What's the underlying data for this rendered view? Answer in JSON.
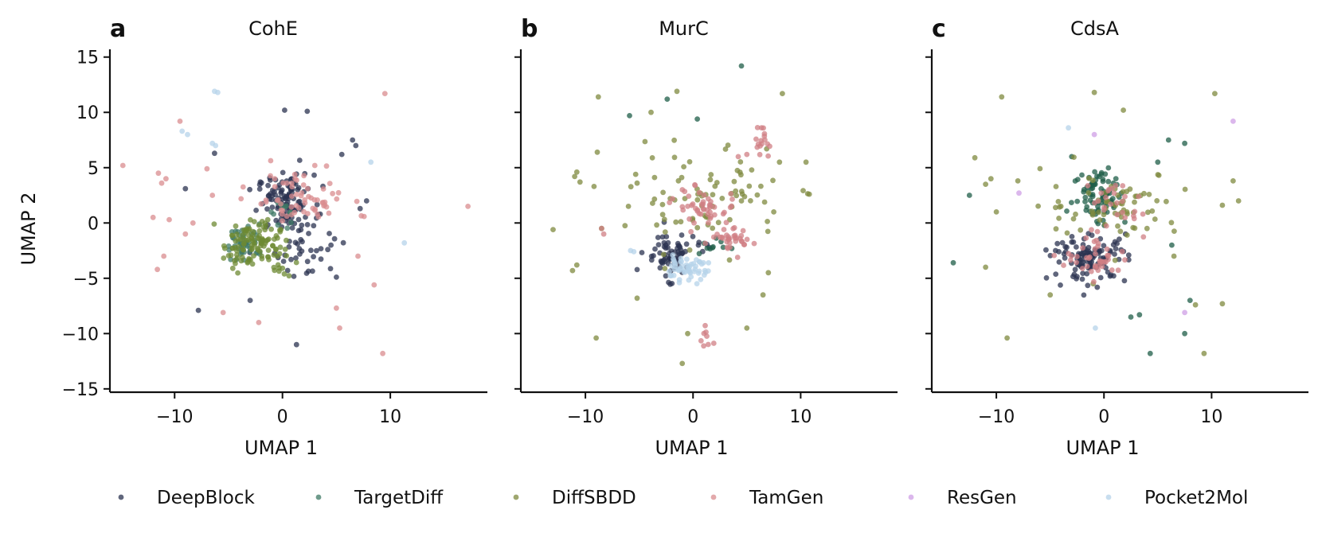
{
  "legend": [
    {
      "name": "DeepBlock",
      "color": "#2b3350"
    },
    {
      "name": "TargetDiff",
      "color": "#3f7a66"
    },
    {
      "name": "DiffSBDD",
      "color": "#7f8a3f"
    },
    {
      "name": "TamGen",
      "color": "#d98c8f"
    },
    {
      "name": "ResGen",
      "color": "#cf9fe6"
    },
    {
      "name": "Pocket2Mol",
      "color": "#b5d3ea"
    }
  ],
  "chart_data": [
    {
      "type": "scatter",
      "letter": "a",
      "title": "CohE",
      "xlabel": "UMAP 1",
      "ylabel": "UMAP 2",
      "xlim": [
        -16,
        19
      ],
      "ylim": [
        -15.3,
        15.7
      ],
      "xticks": [
        -10,
        0,
        10
      ],
      "xtick_labels": [
        "−10",
        "0",
        "10"
      ],
      "yticks": [
        -15,
        -10,
        -5,
        0,
        5,
        10,
        15
      ],
      "ytick_labels": [
        "−15",
        "−10",
        "−5",
        "0",
        "5",
        "10",
        "15"
      ],
      "show_ytick_labels": true,
      "series": [
        {
          "name": "DeepBlock",
          "color": "#2b3350",
          "clusters": [
            {
              "cx": 0.3,
              "cy": 1.8,
              "sx": 1.3,
              "sy": 1.3,
              "n": 110
            },
            {
              "cx": 2.5,
              "cy": -2.5,
              "sx": 1.7,
              "sy": 1.3,
              "n": 35
            }
          ],
          "outliers": [
            [
              0.2,
              10.2
            ],
            [
              2.3,
              10.1
            ],
            [
              6.5,
              7.5
            ],
            [
              6.8,
              7.0
            ],
            [
              5.5,
              6.2
            ],
            [
              -6.3,
              6.3
            ],
            [
              -9.0,
              3.1
            ],
            [
              -7.8,
              -7.9
            ],
            [
              1.3,
              -11.0
            ],
            [
              7.8,
              2.0
            ],
            [
              5.0,
              -4.9
            ],
            [
              -3.0,
              -7.0
            ],
            [
              3.5,
              0.8
            ],
            [
              7.2,
              1.3
            ],
            [
              4.5,
              -2.0
            ]
          ]
        },
        {
          "name": "TargetDiff",
          "color": "#3f7a66",
          "clusters": [
            {
              "cx": -3.4,
              "cy": -1.7,
              "sx": 0.9,
              "sy": 0.8,
              "n": 45
            },
            {
              "cx": 0.4,
              "cy": 1.3,
              "sx": 0.9,
              "sy": 0.9,
              "n": 12
            }
          ],
          "outliers": [
            [
              -4.8,
              -3.3
            ]
          ]
        },
        {
          "name": "DiffSBDD",
          "color": "#6e8a33",
          "clusters": [
            {
              "cx": -2.8,
              "cy": -1.9,
              "sx": 1.3,
              "sy": 1.1,
              "n": 110
            },
            {
              "cx": -0.5,
              "cy": -3.7,
              "sx": 0.8,
              "sy": 0.6,
              "n": 10
            }
          ],
          "outliers": []
        },
        {
          "name": "TamGen",
          "color": "#d98c8f",
          "clusters": [
            {
              "cx": 1.6,
              "cy": 2.1,
              "sx": 2.2,
              "sy": 1.3,
              "n": 65
            }
          ],
          "outliers": [
            [
              -14.8,
              5.2
            ],
            [
              17.2,
              1.5
            ],
            [
              9.5,
              11.7
            ],
            [
              -9.5,
              9.2
            ],
            [
              -11.5,
              4.5
            ],
            [
              -11.2,
              3.6
            ],
            [
              -10.5,
              0.3
            ],
            [
              -11.6,
              -4.2
            ],
            [
              -11.0,
              -3.0
            ],
            [
              8.5,
              -5.6
            ],
            [
              9.3,
              -11.8
            ],
            [
              5.3,
              -9.5
            ],
            [
              -5.5,
              -8.1
            ],
            [
              -2.2,
              -9.0
            ],
            [
              -7.0,
              4.9
            ],
            [
              -8.3,
              0.0
            ],
            [
              5.0,
              -7.7
            ],
            [
              -9.0,
              -1.0
            ],
            [
              -12.0,
              0.5
            ],
            [
              7.0,
              -3.0
            ],
            [
              -6.5,
              2.5
            ],
            [
              3.0,
              5.2
            ],
            [
              -10.8,
              4.0
            ]
          ]
        },
        {
          "name": "Pocket2Mol",
          "color": "#b5d3ea",
          "clusters": [],
          "outliers": [
            [
              -6.3,
              11.9
            ],
            [
              -6.0,
              11.8
            ],
            [
              -9.3,
              8.3
            ],
            [
              -8.8,
              8.0
            ],
            [
              -6.5,
              7.2
            ],
            [
              -6.2,
              7.0
            ],
            [
              8.2,
              5.5
            ],
            [
              11.3,
              -1.8
            ]
          ]
        }
      ]
    },
    {
      "type": "scatter",
      "letter": "b",
      "title": "MurC",
      "xlabel": "UMAP 1",
      "ylabel": "",
      "xlim": [
        -16,
        19
      ],
      "ylim": [
        -15.3,
        15.7
      ],
      "xticks": [
        -10,
        0,
        10
      ],
      "xtick_labels": [
        "−10",
        "0",
        "10"
      ],
      "yticks": [
        -15,
        -10,
        -5,
        0,
        5,
        10,
        15
      ],
      "ytick_labels": [
        "−15",
        "−10",
        "−5",
        "0",
        "5",
        "10",
        "15"
      ],
      "show_ytick_labels": false,
      "series": [
        {
          "name": "DeepBlock",
          "color": "#2b3350",
          "clusters": [
            {
              "cx": -2.2,
              "cy": -2.9,
              "sx": 1.2,
              "sy": 1.0,
              "n": 70
            }
          ],
          "outliers": [
            [
              0.5,
              -2.0
            ],
            [
              1.5,
              -2.2
            ]
          ]
        },
        {
          "name": "TargetDiff",
          "color": "#1f5e48",
          "clusters": [
            {
              "cx": 1.3,
              "cy": -2.1,
              "sx": 1.0,
              "sy": 0.5,
              "n": 8
            }
          ],
          "outliers": [
            [
              -5.9,
              9.7
            ],
            [
              0.4,
              9.4
            ],
            [
              -2.4,
              11.2
            ],
            [
              4.5,
              14.2
            ],
            [
              2.8,
              -2.2
            ],
            [
              3.6,
              -2.3
            ]
          ]
        },
        {
          "name": "DiffSBDD",
          "color": "#7f8a3f",
          "clusters": [
            {
              "cx": 1.5,
              "cy": 2.5,
              "sx": 3.5,
              "sy": 2.2,
              "n": 80
            }
          ],
          "outliers": [
            [
              -10.8,
              4.6
            ],
            [
              -11.0,
              4.2
            ],
            [
              -10.5,
              3.7
            ],
            [
              -8.8,
              11.4
            ],
            [
              -8.9,
              6.4
            ],
            [
              -9.2,
              3.3
            ],
            [
              -13.0,
              -0.6
            ],
            [
              -10.8,
              -3.8
            ],
            [
              -11.2,
              -4.3
            ],
            [
              -9.0,
              -10.4
            ],
            [
              8.3,
              11.7
            ],
            [
              10.5,
              5.5
            ],
            [
              10.8,
              2.6
            ],
            [
              7.0,
              -4.5
            ],
            [
              6.5,
              -6.5
            ],
            [
              5.0,
              -9.5
            ],
            [
              -0.5,
              -10.0
            ],
            [
              -1.0,
              -12.7
            ],
            [
              -1.5,
              11.9
            ],
            [
              -3.9,
              10.0
            ],
            [
              -5.2,
              3.6
            ],
            [
              -5.2,
              -6.8
            ],
            [
              -8.5,
              -0.5
            ],
            [
              -6.0,
              1.5
            ],
            [
              4.5,
              2.0
            ],
            [
              7.5,
              1.0
            ]
          ]
        },
        {
          "name": "TamGen",
          "color": "#d07f84",
          "clusters": [
            {
              "cx": 6.5,
              "cy": 7.3,
              "sx": 0.35,
              "sy": 0.7,
              "n": 16
            },
            {
              "cx": 1.3,
              "cy": 1.5,
              "sx": 1.5,
              "sy": 0.9,
              "n": 45
            },
            {
              "cx": 3.2,
              "cy": -1.7,
              "sx": 1.2,
              "sy": 0.6,
              "n": 35
            },
            {
              "cx": 1.3,
              "cy": -10.4,
              "sx": 0.3,
              "sy": 0.4,
              "n": 8
            }
          ],
          "outliers": [
            [
              -8.5,
              -0.5
            ],
            [
              -8.3,
              -1.0
            ],
            [
              5.0,
              6.2
            ],
            [
              4.2,
              6.0
            ],
            [
              -0.5,
              1.5
            ]
          ]
        },
        {
          "name": "Pocket2Mol",
          "color": "#b5d3ea",
          "clusters": [
            {
              "cx": -0.8,
              "cy": -4.2,
              "sx": 1.1,
              "sy": 0.5,
              "n": 55
            }
          ],
          "outliers": [
            [
              -5.8,
              -2.5
            ],
            [
              -5.5,
              -2.6
            ]
          ]
        }
      ]
    },
    {
      "type": "scatter",
      "letter": "c",
      "title": "CdsA",
      "xlabel": "UMAP 1",
      "ylabel": "",
      "xlim": [
        -16,
        19
      ],
      "ylim": [
        -15.3,
        15.7
      ],
      "xticks": [
        -10,
        0,
        10
      ],
      "xtick_labels": [
        "−10",
        "0",
        "10"
      ],
      "yticks": [
        -15,
        -10,
        -5,
        0,
        5,
        10,
        15
      ],
      "ytick_labels": [
        "−15",
        "−10",
        "−5",
        "0",
        "5",
        "10",
        "15"
      ],
      "show_ytick_labels": false,
      "series": [
        {
          "name": "DeepBlock",
          "color": "#2b3350",
          "clusters": [
            {
              "cx": -1.3,
              "cy": -3.2,
              "sx": 1.7,
              "sy": 1.0,
              "n": 110
            }
          ],
          "outliers": [
            [
              -4.5,
              -2.5
            ],
            [
              -4.2,
              -2.6
            ],
            [
              2.0,
              -1.0
            ]
          ]
        },
        {
          "name": "TargetDiff",
          "color": "#1f5e48",
          "clusters": [
            {
              "cx": -0.4,
              "cy": 2.6,
              "sx": 1.2,
              "sy": 1.4,
              "n": 80
            }
          ],
          "outliers": [
            [
              -14.0,
              -3.6
            ],
            [
              7.5,
              7.2
            ],
            [
              6.0,
              7.5
            ],
            [
              5.0,
              5.5
            ],
            [
              -12.5,
              2.5
            ],
            [
              2.5,
              -8.5
            ],
            [
              3.3,
              -8.3
            ],
            [
              4.3,
              -11.8
            ],
            [
              7.5,
              -10.0
            ],
            [
              8.0,
              -7.0
            ],
            [
              6.3,
              -2.0
            ],
            [
              -3.0,
              6.0
            ]
          ]
        },
        {
          "name": "DiffSBDD",
          "color": "#7f8a3f",
          "clusters": [
            {
              "cx": 0.8,
              "cy": 1.7,
              "sx": 3.2,
              "sy": 1.5,
              "n": 70
            }
          ],
          "outliers": [
            [
              -9.5,
              11.4
            ],
            [
              -0.9,
              11.8
            ],
            [
              1.8,
              10.2
            ],
            [
              10.3,
              11.7
            ],
            [
              -12.0,
              5.9
            ],
            [
              -10.5,
              4.0
            ],
            [
              -11.0,
              3.5
            ],
            [
              -8.0,
              3.8
            ],
            [
              11.0,
              1.6
            ],
            [
              12.0,
              3.8
            ],
            [
              -9.0,
              -10.4
            ],
            [
              9.3,
              -11.8
            ],
            [
              11.0,
              -7.3
            ],
            [
              8.5,
              -7.4
            ],
            [
              -1.0,
              -5.5
            ],
            [
              -5.0,
              -6.5
            ],
            [
              -11.0,
              -4.0
            ],
            [
              12.5,
              2.0
            ],
            [
              -10.0,
              1.0
            ],
            [
              6.5,
              -3.0
            ],
            [
              -4.0,
              1.5
            ],
            [
              4.0,
              -0.5
            ]
          ]
        },
        {
          "name": "TamGen",
          "color": "#d07f84",
          "clusters": [
            {
              "cx": -0.3,
              "cy": -3.0,
              "sx": 1.6,
              "sy": 1.0,
              "n": 45
            },
            {
              "cx": 1.0,
              "cy": 1.8,
              "sx": 1.2,
              "sy": 1.0,
              "n": 25
            }
          ],
          "outliers": []
        },
        {
          "name": "ResGen",
          "color": "#cf9fe6",
          "clusters": [],
          "outliers": [
            [
              -0.9,
              8.0
            ],
            [
              12.0,
              9.2
            ],
            [
              -7.9,
              2.7
            ],
            [
              7.5,
              -8.1
            ]
          ]
        },
        {
          "name": "Pocket2Mol",
          "color": "#b5d3ea",
          "clusters": [],
          "outliers": [
            [
              -3.3,
              8.6
            ],
            [
              -0.8,
              -9.5
            ]
          ]
        }
      ]
    }
  ]
}
